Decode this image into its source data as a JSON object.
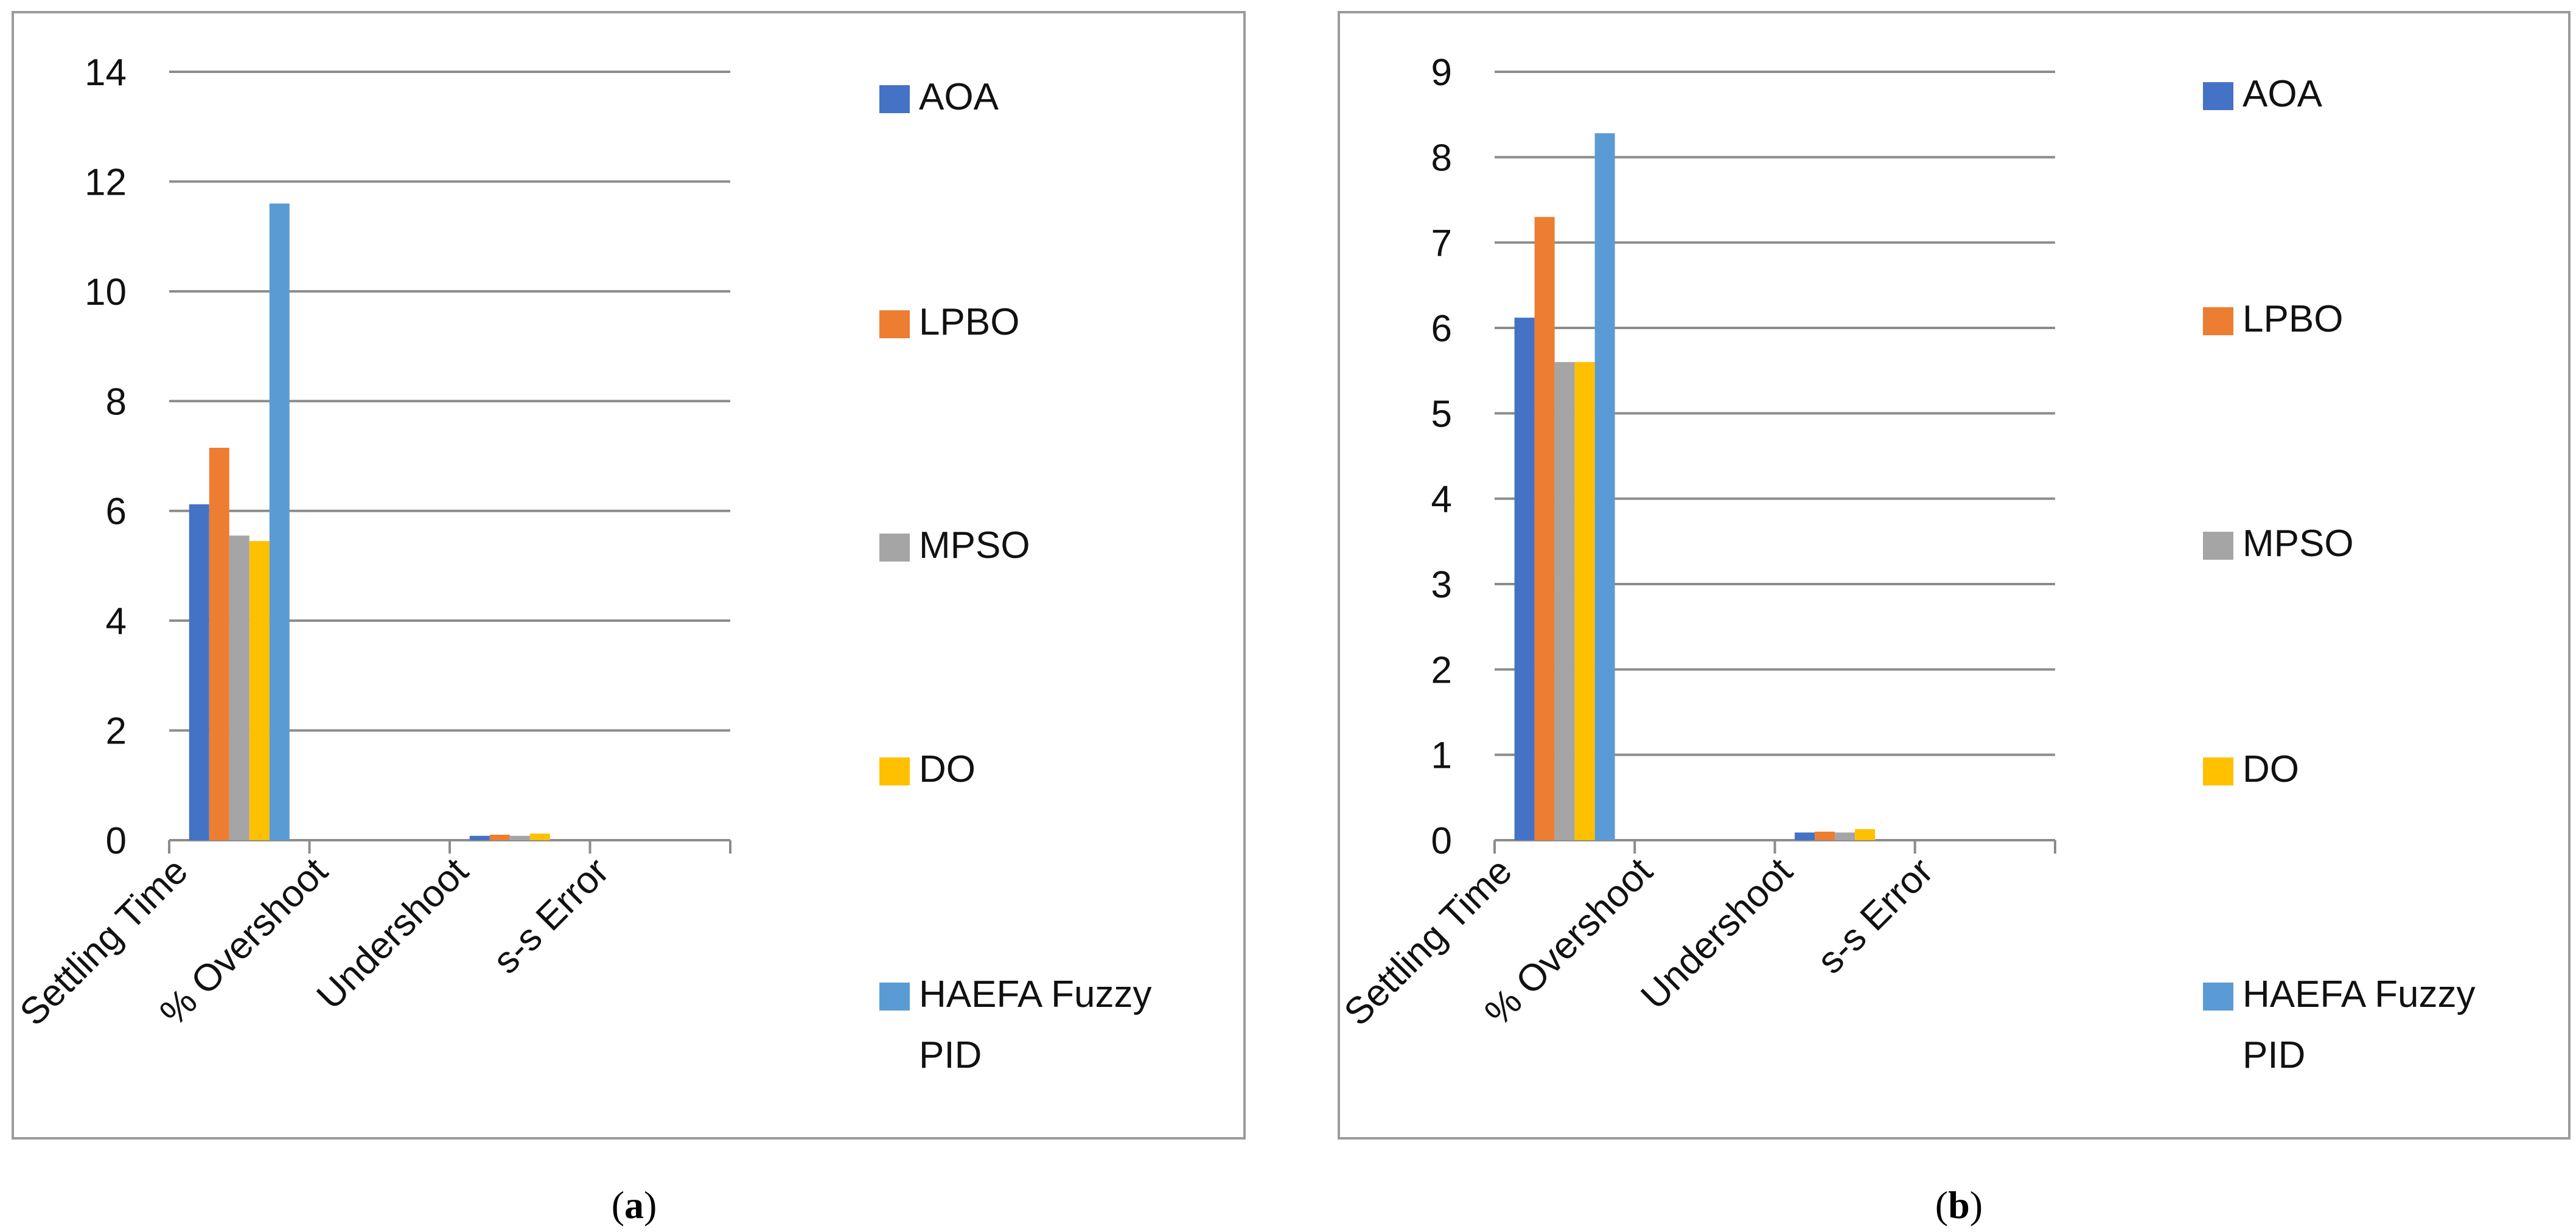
{
  "chart_data": [
    {
      "type": "bar",
      "panel": "a",
      "categories": [
        "Settling Time",
        "% Overshoot",
        "Undershoot",
        "s-s Error"
      ],
      "ylim": [
        0,
        14
      ],
      "yticks": [
        0,
        2,
        4,
        6,
        8,
        10,
        12,
        14
      ],
      "ytick_labels": [
        "0",
        "2",
        "4",
        "6",
        "8",
        "10",
        "12",
        "14"
      ],
      "grid": true,
      "legend_position": "right",
      "series": [
        {
          "name": "AOA",
          "color": "#4472C4",
          "values": [
            6.12,
            0.0,
            0.08,
            0.0
          ]
        },
        {
          "name": "LPBO",
          "color": "#ED7D31",
          "values": [
            7.15,
            0.0,
            0.1,
            0.0
          ]
        },
        {
          "name": "MPSO",
          "color": "#A5A5A5",
          "values": [
            5.55,
            0.0,
            0.08,
            0.0
          ]
        },
        {
          "name": "DO",
          "color": "#FFC000",
          "values": [
            5.45,
            0.0,
            0.12,
            0.0
          ]
        },
        {
          "name": "HAEFA Fuzzy PID",
          "color": "#5B9BD5",
          "values": [
            11.6,
            0.0,
            0.0,
            0.0
          ]
        }
      ],
      "caption_open": "(",
      "caption_letter": "a",
      "caption_close": ")"
    },
    {
      "type": "bar",
      "panel": "b",
      "categories": [
        "Settling Time",
        "% Overshoot",
        "Undershoot",
        "s-s Error"
      ],
      "ylim": [
        0,
        9
      ],
      "yticks": [
        0,
        1,
        2,
        3,
        4,
        5,
        6,
        7,
        8,
        9
      ],
      "ytick_labels": [
        "0",
        "1",
        "2",
        "3",
        "4",
        "5",
        "6",
        "7",
        "8",
        "9"
      ],
      "grid": true,
      "legend_position": "right",
      "series": [
        {
          "name": "AOA",
          "color": "#4472C4",
          "values": [
            6.12,
            0.0,
            0.09,
            0.0
          ]
        },
        {
          "name": "LPBO",
          "color": "#ED7D31",
          "values": [
            7.3,
            0.0,
            0.1,
            0.0
          ]
        },
        {
          "name": "MPSO",
          "color": "#A5A5A5",
          "values": [
            5.6,
            0.0,
            0.09,
            0.0
          ]
        },
        {
          "name": "DO",
          "color": "#FFC000",
          "values": [
            5.6,
            0.0,
            0.13,
            0.0
          ]
        },
        {
          "name": "HAEFA Fuzzy PID",
          "color": "#5B9BD5",
          "values": [
            8.28,
            0.0,
            0.0,
            0.0
          ]
        }
      ],
      "caption_open": "(",
      "caption_letter": "b",
      "caption_close": ")"
    }
  ]
}
